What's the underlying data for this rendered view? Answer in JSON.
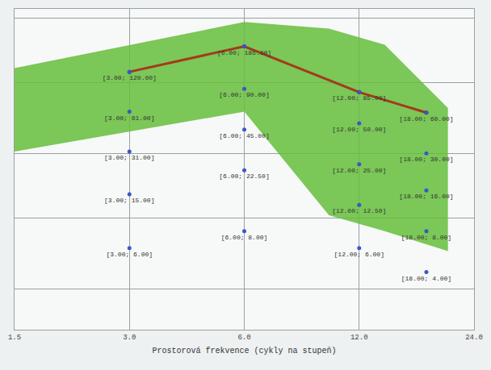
{
  "chart_data": {
    "type": "scatter",
    "x_label": "Prostorová frekvence (cykly na stupeň)",
    "xlim": [
      1.5,
      24
    ],
    "xticks": [
      1.5,
      {
        "value": 3,
        "label": "3.0"
      },
      {
        "value": 6,
        "label": "6.0"
      },
      {
        "value": 12,
        "label": "12.0"
      },
      {
        "value": 24,
        "label": "24.0"
      }
    ],
    "ylim": [
      1.5,
      350
    ],
    "yticks": [
      3,
      10,
      30,
      100,
      300
    ],
    "log": true,
    "grid": true,
    "tick_labels": "x",
    "data_labels": true,
    "series": [
      {
        "type": "area",
        "color": "#66bf3c",
        "x": [
          1.5,
          6,
          10,
          14,
          20.5
        ],
        "upper": [
          128,
          280,
          250,
          190,
          65
        ],
        "lower": [
          31,
          61,
          10.5,
          8,
          5.7
        ]
      },
      {
        "type": "line",
        "color": "#a33a1c",
        "line_style": "solid",
        "marker": "circle",
        "x": [
          3,
          6,
          12,
          18
        ],
        "values": [
          120,
          185,
          85,
          60
        ]
      },
      {
        "type": "scatter",
        "color": "#3a56c8",
        "marker": "circle",
        "x": [
          3,
          3,
          3,
          3,
          3,
          6,
          6,
          6,
          6,
          6,
          12,
          12,
          12,
          12,
          12,
          18,
          18,
          18,
          18,
          18
        ],
        "values": [
          120,
          61,
          31,
          15,
          6,
          185,
          90,
          45,
          22.5,
          8,
          85,
          50,
          25,
          12.5,
          6,
          60,
          30,
          16,
          8,
          4
        ],
        "value_labels": [
          "[3.00; 120.00]",
          "[3.00; 61.00]",
          "[3.00; 31.00]",
          "[3.00; 15.00]",
          "[3.00; 6.00]",
          "[6.00; 185.00]",
          "[6.00; 90.00]",
          "[6.00; 45.00]",
          "[6.00; 22.50]",
          "[6.00; 8.00]",
          "[12.00; 85.00]",
          "[12.00; 50.00]",
          "[12.00; 25.00]",
          "[12.00; 12.50]",
          "[12.00; 6.00]",
          "[18.00; 60.00]",
          "[18.00; 30.00]",
          "[18.00; 16.00]",
          "[18.00; 8.00]",
          "[18.00; 4.00]"
        ]
      }
    ]
  }
}
